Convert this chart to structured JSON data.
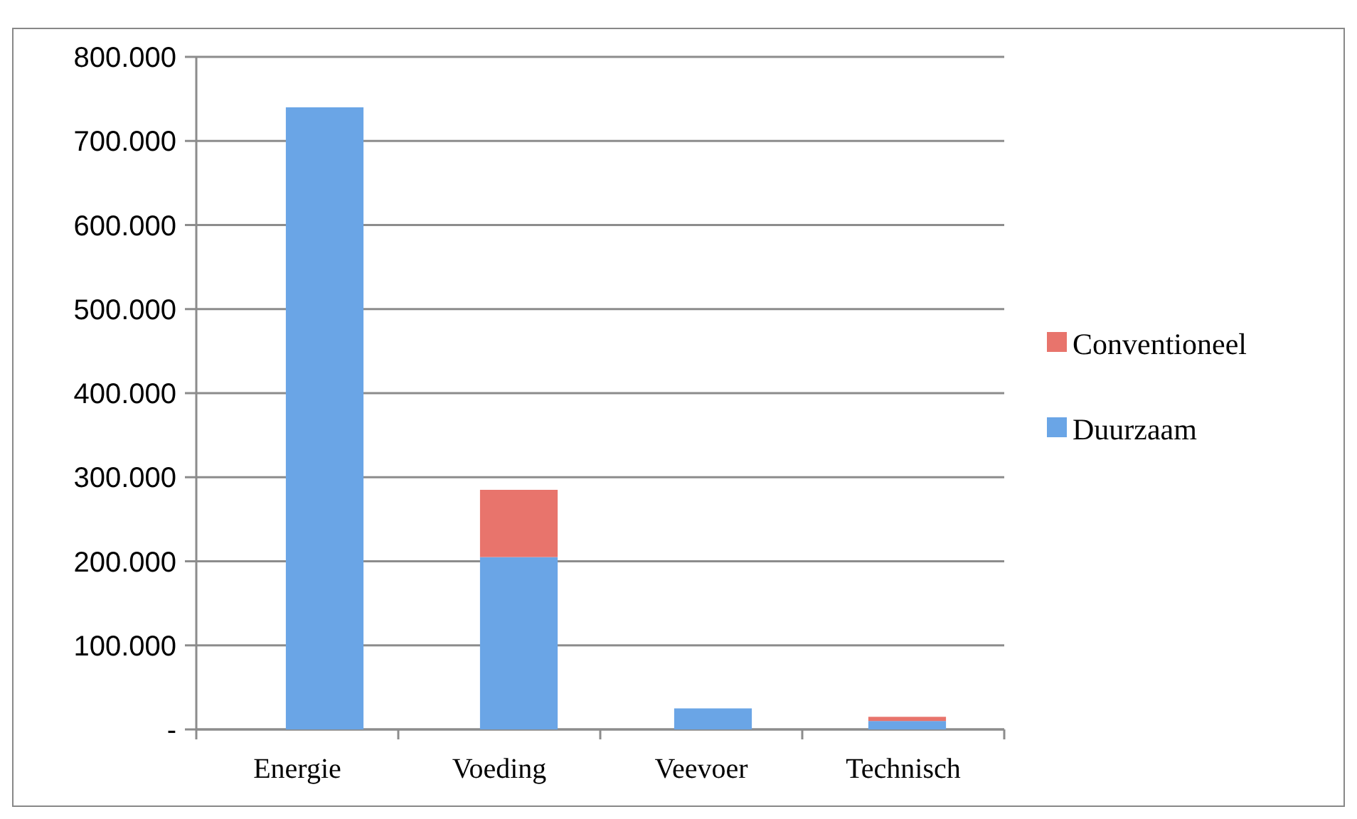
{
  "chart_data": {
    "type": "bar",
    "stacked": true,
    "categories": [
      "Energie",
      "Voeding",
      "Veevoer",
      "Technisch"
    ],
    "series": [
      {
        "name": "Duurzaam",
        "color": "#6aa5e6",
        "values": [
          740000,
          205000,
          25000,
          10000
        ]
      },
      {
        "name": "Conventioneel",
        "color": "#e8746c",
        "values": [
          0,
          80000,
          0,
          5000
        ]
      }
    ],
    "ylim": [
      0,
      800000
    ],
    "yticks": [
      {
        "value": 0,
        "label": "-"
      },
      {
        "value": 100000,
        "label": "100.000"
      },
      {
        "value": 200000,
        "label": "200.000"
      },
      {
        "value": 300000,
        "label": "300.000"
      },
      {
        "value": 400000,
        "label": "400.000"
      },
      {
        "value": 500000,
        "label": "500.000"
      },
      {
        "value": 600000,
        "label": "600.000"
      },
      {
        "value": 700000,
        "label": "700.000"
      },
      {
        "value": 800000,
        "label": "800.000"
      }
    ],
    "grid": "y",
    "legend": "right"
  }
}
